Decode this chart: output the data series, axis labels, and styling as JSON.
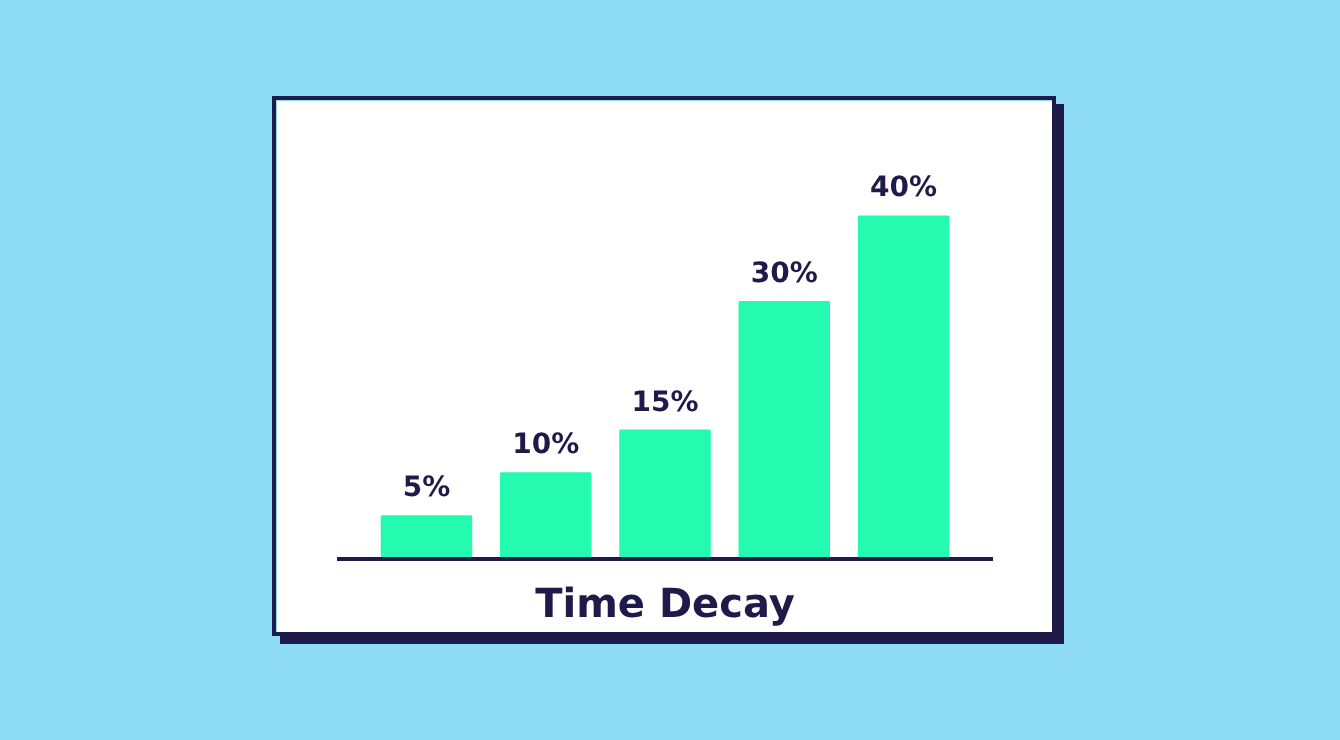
{
  "chart_data": {
    "type": "bar",
    "xlabel": "Time Decay",
    "categories": [
      null,
      null,
      null,
      null,
      null
    ],
    "values": [
      5,
      10,
      15,
      30,
      40
    ],
    "color": "#24fbb0",
    "value_labels": [
      "5%",
      "10%",
      "15%",
      "30%",
      "40%"
    ]
  }
}
